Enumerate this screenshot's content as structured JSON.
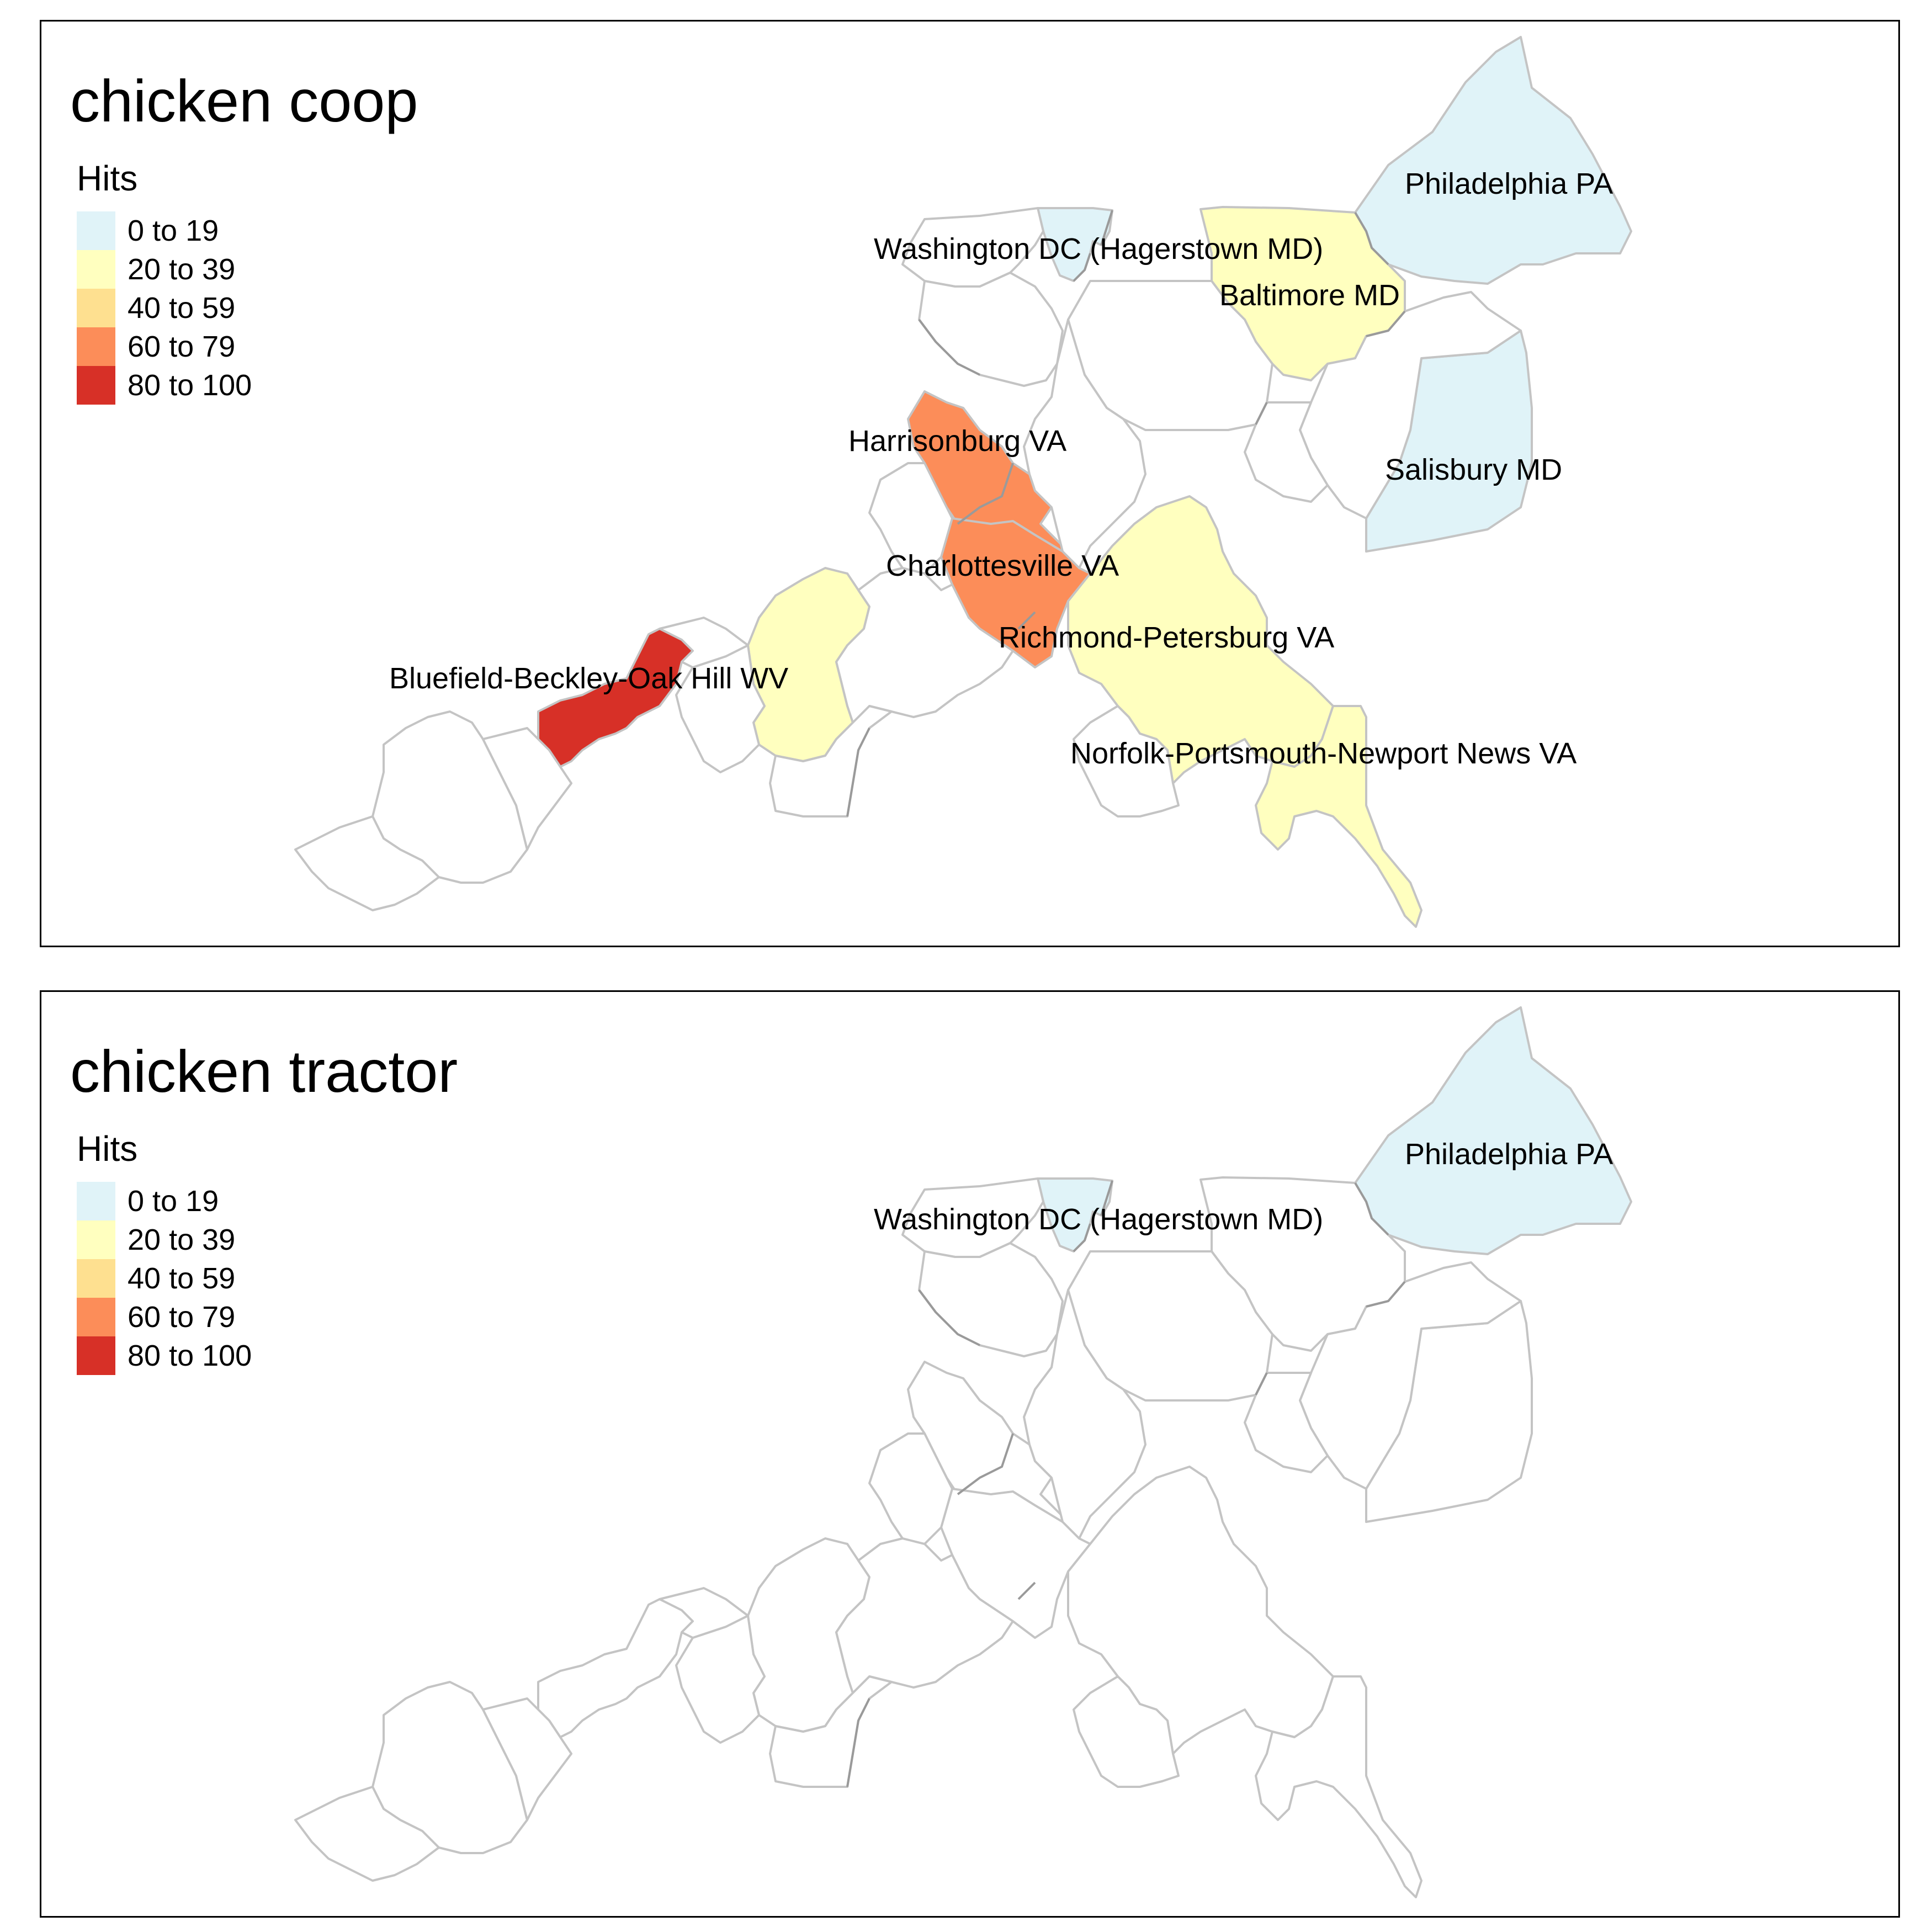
{
  "legend": {
    "title": "Hits",
    "bins": [
      {
        "label": "0 to 19",
        "color": "#e0f3f8"
      },
      {
        "label": "20 to 39",
        "color": "#ffffbf"
      },
      {
        "label": "40 to 59",
        "color": "#fee090"
      },
      {
        "label": "60 to 79",
        "color": "#fc8d59"
      },
      {
        "label": "80 to 100",
        "color": "#d73027"
      }
    ]
  },
  "no_data_color": "#ffffff",
  "panels": [
    {
      "title": "chicken coop",
      "values": {
        "philadelphia": 0,
        "washington": 0,
        "salisbury": 0,
        "baltimore": 1,
        "richmond": 1,
        "norfolk": 1,
        "roanoke": 1,
        "harrisonburg": 3,
        "charlottesville": 3,
        "bluefield": 4
      },
      "labels": [
        {
          "region": "philadelphia",
          "text": "Philadelphia PA"
        },
        {
          "region": "washington",
          "text": "Washington DC (Hagerstown MD)"
        },
        {
          "region": "baltimore",
          "text": "Baltimore MD"
        },
        {
          "region": "harrisonburg",
          "text": "Harrisonburg VA"
        },
        {
          "region": "salisbury",
          "text": "Salisbury MD"
        },
        {
          "region": "charlottesville",
          "text": "Charlottesville VA"
        },
        {
          "region": "richmond",
          "text": "Richmond-Petersburg VA"
        },
        {
          "region": "bluefield",
          "text": "Bluefield-Beckley-Oak Hill WV"
        },
        {
          "region": "norfolk",
          "text": "Norfolk-Portsmouth-Newport News VA"
        }
      ]
    },
    {
      "title": "chicken tractor",
      "values": {
        "philadelphia": 0,
        "washington": 0
      },
      "labels": [
        {
          "region": "philadelphia",
          "text": "Philadelphia PA"
        },
        {
          "region": "washington",
          "text": "Washington DC (Hagerstown MD)"
        }
      ]
    }
  ]
}
